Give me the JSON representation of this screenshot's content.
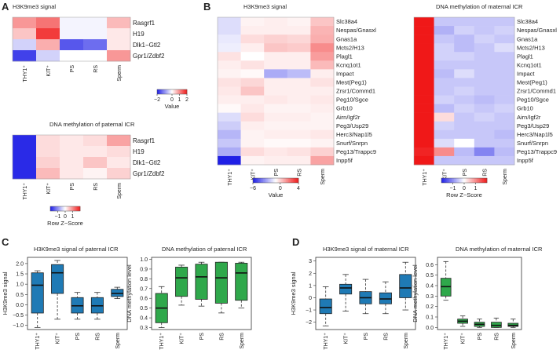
{
  "colors": {
    "low": "#1f1fe6",
    "mid": "#ffffff",
    "high": "#f01818",
    "box_blue": "#1f7ab5",
    "box_green": "#2fa84b",
    "whisker": "#333333"
  },
  "panel_labels": {
    "A": "A",
    "B": "B",
    "C": "C",
    "D": "D"
  },
  "chart_data": [
    {
      "id": "A1",
      "type": "heatmap",
      "title": "H3K9me3 signal",
      "rows": [
        "Rasgrf1",
        "H19",
        "Dlk1−Gtl2",
        "Gpr1/Zdbf2"
      ],
      "cols": [
        "THY1⁺",
        "KIT⁺",
        "PS",
        "RS",
        "Sperm"
      ],
      "values": [
        [
          0.9,
          1.2,
          -0.1,
          -0.1,
          0.6
        ],
        [
          0.5,
          1.7,
          -0.1,
          -0.1,
          0.2
        ],
        [
          -0.4,
          0.7,
          -1.5,
          -1.3,
          0.2
        ],
        [
          -1.7,
          -0.4,
          0.0,
          0.0,
          0.9
        ]
      ],
      "legend": {
        "ticks": [
          "−2",
          "0",
          "1",
          "2"
        ],
        "label": "Value",
        "range": [
          -2,
          2
        ]
      }
    },
    {
      "id": "A2",
      "type": "heatmap",
      "title": "DNA methylation of paternal ICR",
      "rows": [
        "Rasgrf1",
        "H19",
        "Dlk1−Gtl2",
        "Gpr1/Zdbf2"
      ],
      "cols": [
        "THY1⁺",
        "KIT⁺",
        "PS",
        "RS",
        "Sperm"
      ],
      "values": [
        [
          -1.9,
          0.3,
          0.2,
          0.3,
          0.8
        ],
        [
          -1.9,
          0.3,
          0.2,
          0.2,
          0.3
        ],
        [
          -1.9,
          0.4,
          0.2,
          0.5,
          0.2
        ],
        [
          -1.9,
          0.6,
          0.2,
          0.1,
          0.4
        ]
      ],
      "legend": {
        "ticks": [
          "−1",
          "0",
          "1"
        ],
        "label": "Row Z−Score",
        "range": [
          -2,
          2
        ]
      }
    },
    {
      "id": "B1",
      "type": "heatmap",
      "title": "H3K9me3 signal",
      "rows": [
        "Slc38a4",
        "Nespas/Gnasxl",
        "Gnas1a",
        "Mcts2/H13",
        "Plagl1",
        "Kcnq1ot1",
        "Impact",
        "Mest(Peg1)",
        "Zrsr1/Commd1",
        "Peg10/Sgce",
        "Grb10",
        "Airn/Igf2r",
        "Peg3/Usp29",
        "Herc3/Nap1l5",
        "Snurf/Snrpn",
        "Peg13/Trappc9",
        "Inpp5f"
      ],
      "cols": [
        "THY1⁺",
        "KIT⁺",
        "PS",
        "RS",
        "Sperm"
      ],
      "values": [
        [
          -0.6,
          0.2,
          0.3,
          0.2,
          1.0
        ],
        [
          -0.6,
          0.3,
          0.3,
          0.3,
          1.3
        ],
        [
          -0.4,
          0.6,
          0.8,
          0.7,
          1.4
        ],
        [
          -0.3,
          0.3,
          1.0,
          0.9,
          2.0
        ],
        [
          0.5,
          0.0,
          0.3,
          0.3,
          1.7
        ],
        [
          0.3,
          0.5,
          0.3,
          0.3,
          1.2
        ],
        [
          0.2,
          0.1,
          -1.5,
          -1.2,
          0.3
        ],
        [
          0.5,
          0.7,
          0.3,
          0.3,
          0.5
        ],
        [
          0.4,
          1.0,
          0.3,
          0.3,
          0.3
        ],
        [
          0.3,
          0.3,
          0.4,
          0.3,
          0.4
        ],
        [
          0.1,
          0.4,
          0.2,
          0.2,
          0.3
        ],
        [
          -0.6,
          0.6,
          0.3,
          0.3,
          0.2
        ],
        [
          -0.9,
          0.3,
          0.2,
          0.2,
          0.2
        ],
        [
          -1.3,
          0.2,
          0.3,
          0.3,
          0.4
        ],
        [
          -1.0,
          0.2,
          0.1,
          0.1,
          0.2
        ],
        [
          -1.5,
          0.6,
          0.4,
          0.5,
          0.8
        ],
        [
          -5.0,
          0.2,
          0.3,
          0.3,
          1.6
        ]
      ],
      "legend": {
        "ticks": [
          "−6",
          "0",
          "4"
        ],
        "label": "Value",
        "range": [
          -6,
          4
        ]
      }
    },
    {
      "id": "B2",
      "type": "heatmap",
      "title": "DNA methylation of maternal ICR",
      "rows": [
        "Slc38a4",
        "Nespas/Gnasxl",
        "Gnas1a",
        "Mcts2/H13",
        "Plagl1",
        "Kcnq1ot1",
        "Impact",
        "Mest(Peg1)",
        "Zrsr1/Commd1",
        "Peg10/Sgce",
        "Grb10",
        "Airn/Igf2r",
        "Peg3/Usp29",
        "Herc3/Nap1l5",
        "Snurf/Snrpn",
        "Peg13/Trappc9",
        "Inpp5f"
      ],
      "cols": [
        "THY1⁺",
        "KIT⁺",
        "PS",
        "RS",
        "Sperm"
      ],
      "values": [
        [
          2.0,
          -0.5,
          -0.5,
          -0.5,
          -0.5
        ],
        [
          2.0,
          -0.7,
          -0.4,
          -0.5,
          -0.4
        ],
        [
          2.0,
          -0.5,
          -0.6,
          -0.4,
          -0.5
        ],
        [
          2.0,
          -0.4,
          -0.6,
          -0.5,
          -0.3
        ],
        [
          2.0,
          -0.4,
          -0.4,
          -0.5,
          -0.5
        ],
        [
          2.0,
          -0.5,
          -0.5,
          -0.5,
          -0.5
        ],
        [
          2.0,
          -0.6,
          -0.3,
          -0.5,
          -0.5
        ],
        [
          2.0,
          -0.5,
          -0.5,
          -0.5,
          -0.5
        ],
        [
          2.0,
          -0.5,
          -0.4,
          -0.5,
          -0.5
        ],
        [
          2.0,
          -0.4,
          -0.5,
          -0.6,
          -0.5
        ],
        [
          2.0,
          -0.6,
          -0.4,
          -0.5,
          -0.4
        ],
        [
          2.0,
          0.3,
          -0.5,
          -0.4,
          -0.5
        ],
        [
          2.0,
          -0.4,
          -0.5,
          -0.5,
          -0.5
        ],
        [
          2.0,
          -0.5,
          -0.5,
          -0.5,
          -0.6
        ],
        [
          2.0,
          -0.3,
          0.0,
          -0.5,
          -0.5
        ],
        [
          1.9,
          1.0,
          -0.6,
          -1.1,
          -0.6
        ],
        [
          2.0,
          -0.5,
          -0.5,
          -0.5,
          -0.5
        ]
      ],
      "legend": {
        "ticks": [
          "−1",
          "0",
          "1"
        ],
        "label": "Row Z−Score",
        "range": [
          -2,
          2
        ]
      }
    },
    {
      "id": "C1",
      "type": "boxplot",
      "title": "H3K9me3 signal of paternal ICR",
      "ylabel": "H3K9me3 signal",
      "color": "box_blue",
      "categories": [
        "THY1⁺",
        "KIT⁺",
        "PS",
        "RS",
        "Sperm"
      ],
      "ylim": [
        -1.2,
        2.3
      ],
      "yticks": [
        -1.0,
        -0.5,
        0.0,
        0.5,
        1.0,
        1.5,
        2.0
      ],
      "ytick_labels": [
        "−1.0",
        "−0.5",
        "0.0",
        "0.5",
        "1.0",
        "1.5",
        "2.0"
      ],
      "boxes": [
        {
          "min": -1.1,
          "q1": -0.4,
          "median": 0.95,
          "q3": 1.55,
          "max": 1.65
        },
        {
          "min": -0.7,
          "q1": 0.55,
          "median": 1.55,
          "q3": 1.95,
          "max": 2.15
        },
        {
          "min": -0.7,
          "q1": -0.4,
          "median": -0.05,
          "q3": 0.35,
          "max": 0.6
        },
        {
          "min": -0.7,
          "q1": -0.4,
          "median": -0.05,
          "q3": 0.35,
          "max": 0.6
        },
        {
          "min": 0.3,
          "q1": 0.4,
          "median": 0.55,
          "q3": 0.75,
          "max": 0.85
        }
      ]
    },
    {
      "id": "C2",
      "type": "boxplot",
      "title": "DNA methylation of paternal ICR",
      "ylabel": "DNA methylation level",
      "color": "box_green",
      "categories": [
        "THY1⁺",
        "KIT⁺",
        "PS",
        "RS",
        "Sperm"
      ],
      "ylim": [
        0.28,
        1.02
      ],
      "yticks": [
        0.3,
        0.4,
        0.5,
        0.6,
        0.7,
        0.8,
        0.9,
        1.0
      ],
      "ytick_labels": [
        "0.3",
        "0.4",
        "0.5",
        "0.6",
        "0.7",
        "0.8",
        "0.9",
        "1.0"
      ],
      "boxes": [
        {
          "min": 0.3,
          "q1": 0.35,
          "median": 0.5,
          "q3": 0.65,
          "max": 0.72
        },
        {
          "min": 0.53,
          "q1": 0.62,
          "median": 0.81,
          "q3": 0.92,
          "max": 0.94
        },
        {
          "min": 0.52,
          "q1": 0.59,
          "median": 0.82,
          "q3": 0.95,
          "max": 0.97
        },
        {
          "min": 0.45,
          "q1": 0.55,
          "median": 0.81,
          "q3": 0.97,
          "max": 0.97
        },
        {
          "min": 0.5,
          "q1": 0.58,
          "median": 0.86,
          "q3": 0.96,
          "max": 0.97
        }
      ]
    },
    {
      "id": "D1",
      "type": "boxplot",
      "title": "H3K9me3 signal of maternal ICR",
      "ylabel": "H3K9me3 signal",
      "color": "box_blue",
      "categories": [
        "THY1⁺",
        "KIT⁺",
        "PS",
        "RS",
        "Sperm"
      ],
      "ylim": [
        -2.6,
        3.3
      ],
      "yticks": [
        -2,
        -1,
        0,
        1,
        2,
        3
      ],
      "ytick_labels": [
        "−2",
        "−1",
        "0",
        "1",
        "2",
        "3"
      ],
      "boxes": [
        {
          "min": -2.3,
          "q1": -1.3,
          "median": -0.8,
          "q3": -0.1,
          "max": 0.9
        },
        {
          "min": -1.1,
          "q1": 0.3,
          "median": 0.8,
          "q3": 1.1,
          "max": 1.9
        },
        {
          "min": -1.3,
          "q1": -0.5,
          "median": 0.0,
          "q3": 0.5,
          "max": 1.5
        },
        {
          "min": -1.3,
          "q1": -0.5,
          "median": -0.1,
          "q3": 0.4,
          "max": 1.3
        },
        {
          "min": -1.0,
          "q1": 0.0,
          "median": 0.8,
          "q3": 1.9,
          "max": 2.9
        }
      ]
    },
    {
      "id": "D2",
      "type": "boxplot",
      "title": "DNA methylation of maternal ICR",
      "ylabel": "DNA methylation level",
      "color": "box_green",
      "categories": [
        "THY1⁺",
        "KIT⁺",
        "PS",
        "RS",
        "Sperm"
      ],
      "ylim": [
        -0.02,
        0.67
      ],
      "yticks": [
        0.0,
        0.1,
        0.2,
        0.3,
        0.4,
        0.5,
        0.6
      ],
      "ytick_labels": [
        "0.0",
        "0.1",
        "0.2",
        "0.3",
        "0.4",
        "0.5",
        "0.6"
      ],
      "boxes": [
        {
          "min": 0.26,
          "q1": 0.3,
          "median": 0.39,
          "q3": 0.47,
          "max": 0.63
        },
        {
          "min": 0.01,
          "q1": 0.04,
          "median": 0.06,
          "q3": 0.08,
          "max": 0.11
        },
        {
          "min": 0.0,
          "q1": 0.01,
          "median": 0.03,
          "q3": 0.05,
          "max": 0.08
        },
        {
          "min": 0.0,
          "q1": 0.0,
          "median": 0.02,
          "q3": 0.05,
          "max": 0.09
        },
        {
          "min": 0.0,
          "q1": 0.01,
          "median": 0.02,
          "q3": 0.04,
          "max": 0.08
        }
      ]
    }
  ]
}
